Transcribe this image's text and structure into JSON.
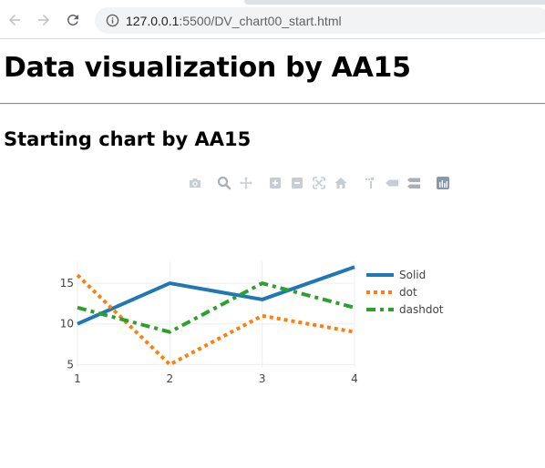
{
  "browser": {
    "back_icon": "arrow-left-icon",
    "forward_icon": "arrow-right-icon",
    "reload_icon": "reload-icon",
    "info_icon": "info-icon",
    "url_host": "127.0.0.1",
    "url_rest": ":5500/DV_chart00_start.html"
  },
  "page": {
    "title": "Data visualization by AA15",
    "subtitle": "Starting chart by AA15"
  },
  "modebar": {
    "buttons": [
      "camera-icon",
      "zoom-icon",
      "pan-icon",
      "zoom-in-icon",
      "zoom-out-icon",
      "autoscale-icon",
      "home-icon",
      "spike-lines-icon",
      "hover-closest-icon",
      "hover-compare-icon",
      "plotly-logo-icon"
    ]
  },
  "chart_data": {
    "type": "line",
    "x": [
      1,
      2,
      3,
      4
    ],
    "xlim": [
      1,
      4
    ],
    "ylim": [
      4.7,
      17.7
    ],
    "xticks": [
      1,
      2,
      3,
      4
    ],
    "yticks": [
      5,
      10,
      15
    ],
    "grid": true,
    "legend_position": "right",
    "series": [
      {
        "name": "Solid",
        "values": [
          10,
          15,
          13,
          17
        ],
        "color": "#1f77b4",
        "dash": "solid"
      },
      {
        "name": "dot",
        "values": [
          16,
          5,
          11,
          9
        ],
        "color": "#ff7f0e",
        "dash": "dot"
      },
      {
        "name": "dashdot",
        "values": [
          12,
          9,
          15,
          12
        ],
        "color": "#2ca02c",
        "dash": "dashdot"
      }
    ]
  }
}
